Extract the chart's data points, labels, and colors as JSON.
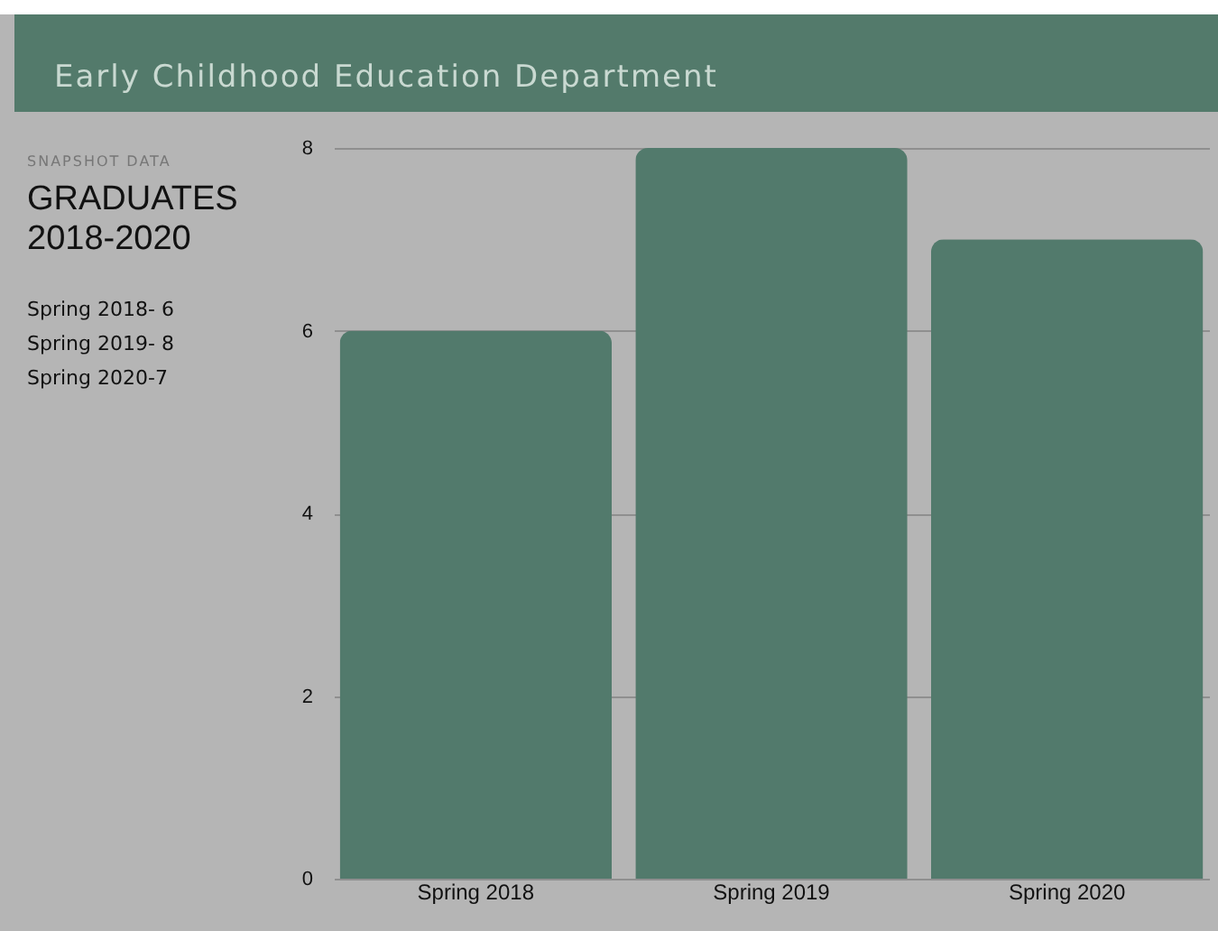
{
  "chart_data": {
    "type": "bar",
    "title": "Early Childhood Education Department",
    "annotations": [
      "SNAPSHOT DATA",
      "GRADUATES 2018-2020",
      "Spring 2018- 6",
      "Spring 2019- 8",
      "Spring 2020-7"
    ],
    "categories": [
      "Spring 2018",
      "Spring 2019",
      "Spring 2020"
    ],
    "values": [
      6,
      8,
      7
    ],
    "color": "#527a6c",
    "ylim": [
      0,
      8
    ],
    "yticks": [
      0,
      2,
      4,
      6,
      8
    ],
    "grid": "y"
  }
}
